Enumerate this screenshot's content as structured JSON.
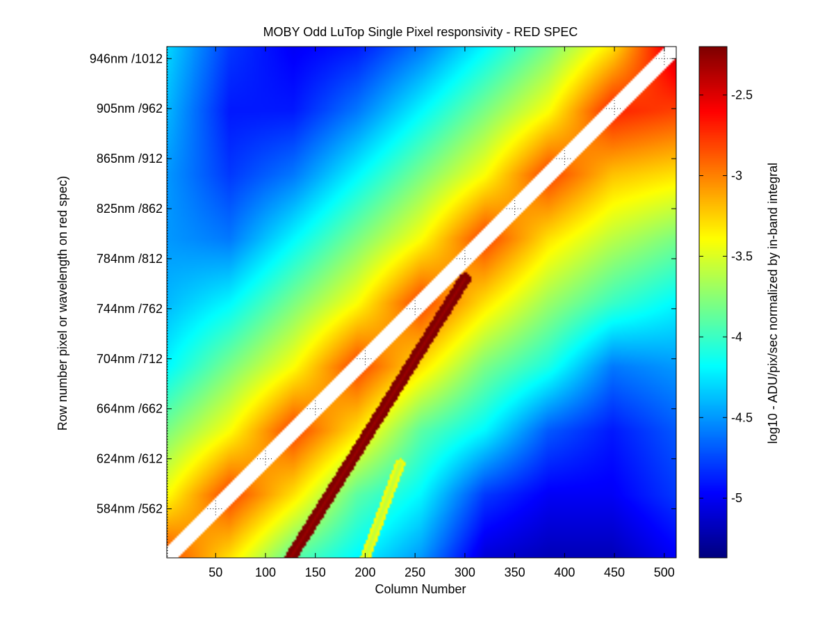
{
  "chart_data": {
    "type": "heatmap",
    "title": "MOBY Odd LuTop Single Pixel responsivity - RED SPEC",
    "xlabel": "Column Number",
    "ylabel": "Row number pixel or wavelength on red spec)",
    "colorbar_label": "log10 - ADU/pix/sec normalized by in-band integral",
    "colormap": "jet",
    "xlim": [
      1,
      512
    ],
    "ylim": [
      1,
      512
    ],
    "clim": [
      -5.37,
      -2.2
    ],
    "x_ticks": [
      50,
      100,
      150,
      200,
      250,
      300,
      350,
      400,
      450,
      500
    ],
    "y_ticks": [
      {
        "row": 50,
        "label": "584nm /562"
      },
      {
        "row": 100,
        "label": "624nm /612"
      },
      {
        "row": 150,
        "label": "664nm /662"
      },
      {
        "row": 200,
        "label": "704nm /712"
      },
      {
        "row": 250,
        "label": "744nm /762"
      },
      {
        "row": 300,
        "label": "784nm /812"
      },
      {
        "row": 350,
        "label": "825nm /862"
      },
      {
        "row": 400,
        "label": "865nm /912"
      },
      {
        "row": 450,
        "label": "905nm /962"
      },
      {
        "row": 500,
        "label": "946nm /1012"
      }
    ],
    "colorbar_ticks": [
      -2.5,
      -3,
      -3.5,
      -4,
      -4.5,
      -5
    ],
    "features": {
      "masked_diagonal": {
        "from": [
          1,
          1
        ],
        "to": [
          512,
          512
        ],
        "value": null
      },
      "ghost_line": {
        "from": [
          125,
          1
        ],
        "to": [
          300,
          280
        ],
        "value": -2.3
      },
      "secondary_ghost": {
        "from": [
          200,
          1
        ],
        "to": [
          235,
          95
        ],
        "value": -3.6
      }
    },
    "value_grid": {
      "x": [
        1,
        64,
        128,
        192,
        256,
        320,
        384,
        448,
        512
      ],
      "y": [
        1,
        64,
        128,
        192,
        256,
        320,
        384,
        448,
        512
      ],
      "z": [
        [
          -2.8,
          -3.3,
          -3.9,
          -4.2,
          -4.5,
          -5.1,
          -5.2,
          -5.2,
          -5.0
        ],
        [
          -3.4,
          -2.8,
          -3.3,
          -3.9,
          -4.2,
          -4.8,
          -5.0,
          -5.0,
          -4.8
        ],
        [
          -3.8,
          -3.4,
          -2.8,
          -3.3,
          -3.9,
          -4.2,
          -4.7,
          -4.9,
          -4.7
        ],
        [
          -4.2,
          -3.8,
          -3.4,
          -2.8,
          -3.3,
          -3.8,
          -4.1,
          -4.6,
          -4.5
        ],
        [
          -4.4,
          -4.2,
          -3.8,
          -3.4,
          -2.8,
          -3.3,
          -3.7,
          -4.0,
          -4.2
        ],
        [
          -4.5,
          -4.6,
          -4.2,
          -3.8,
          -3.4,
          -2.8,
          -3.3,
          -3.6,
          -3.8
        ],
        [
          -4.5,
          -4.8,
          -4.6,
          -4.2,
          -3.8,
          -3.4,
          -2.8,
          -3.2,
          -3.3
        ],
        [
          -4.4,
          -4.9,
          -4.9,
          -4.6,
          -4.2,
          -3.8,
          -3.4,
          -2.7,
          -2.8
        ],
        [
          -4.3,
          -4.8,
          -5.0,
          -4.9,
          -4.6,
          -4.2,
          -3.8,
          -3.3,
          -2.4
        ]
      ]
    }
  }
}
